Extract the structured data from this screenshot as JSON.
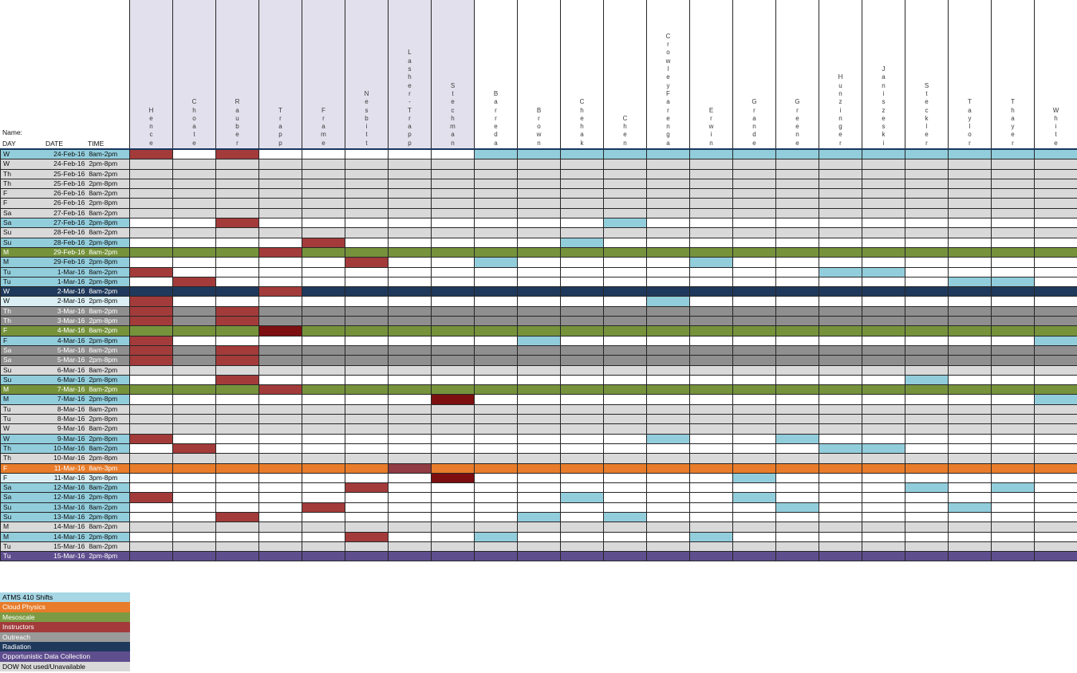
{
  "header": {
    "name_label": "Name:",
    "day": "DAY",
    "date": "DATE",
    "time": "TIME"
  },
  "columns": [
    {
      "name": "Hence",
      "shaded": true
    },
    {
      "name": "Choate",
      "shaded": true
    },
    {
      "name": "Rauber",
      "shaded": true
    },
    {
      "name": "Trapp",
      "shaded": true
    },
    {
      "name": "Frame",
      "shaded": true
    },
    {
      "name": "Nesbitt",
      "shaded": true
    },
    {
      "name": "Lasher-Trapp",
      "shaded": true
    },
    {
      "name": "Stechman",
      "shaded": true
    },
    {
      "name": "Barreda",
      "shaded": false
    },
    {
      "name": "Brown",
      "shaded": false
    },
    {
      "name": "Chehak",
      "shaded": false
    },
    {
      "name": "Chen",
      "shaded": false
    },
    {
      "name": "CrowleyFarenga",
      "shaded": false
    },
    {
      "name": "Erwin",
      "shaded": false
    },
    {
      "name": "Grande",
      "shaded": false
    },
    {
      "name": "Greene",
      "shaded": false
    },
    {
      "name": "Hunzinger",
      "shaded": false
    },
    {
      "name": "Janiszeski",
      "shaded": false
    },
    {
      "name": "Steckler",
      "shaded": false
    },
    {
      "name": "Taylor",
      "shaded": false
    },
    {
      "name": "Thayer",
      "shaded": false
    },
    {
      "name": "White",
      "shaded": false
    }
  ],
  "colors": {
    "lavender": "#E3E0ED",
    "blue": "#92CDDC",
    "pale": "#DAEEF3",
    "lgray": "#D9D9D9",
    "dgray": "#8F8F8F",
    "green": "#76933C",
    "navy": "#1F395C",
    "orange": "#E87C2A",
    "purple": "#5F4E8E",
    "red": "#A33B3B",
    "maroon": "#7D0F10",
    "ltmaroon": "#913B43",
    "white": "#FFFFFF"
  },
  "rows": [
    {
      "day": "W",
      "date": "24-Feb-16",
      "time": "8am-2pm",
      "label": "blue",
      "fill": "white",
      "marks": [
        {
          "col": "Hence",
          "color": "red"
        },
        {
          "col": "Rauber",
          "color": "red"
        },
        {
          "col": "Barreda",
          "color": "blue"
        },
        {
          "col": "Brown",
          "color": "blue"
        },
        {
          "col": "Chehak",
          "color": "blue"
        },
        {
          "col": "Chen",
          "color": "blue"
        },
        {
          "col": "CrowleyFarenga",
          "color": "blue"
        },
        {
          "col": "Erwin",
          "color": "blue"
        },
        {
          "col": "Grande",
          "color": "blue"
        },
        {
          "col": "Greene",
          "color": "blue"
        },
        {
          "col": "Hunzinger",
          "color": "blue"
        },
        {
          "col": "Janiszeski",
          "color": "blue"
        },
        {
          "col": "Steckler",
          "color": "blue"
        },
        {
          "col": "Taylor",
          "color": "blue"
        },
        {
          "col": "Thayer",
          "color": "blue"
        },
        {
          "col": "White",
          "color": "blue"
        }
      ]
    },
    {
      "day": "W",
      "date": "24-Feb-16",
      "time": "2pm-8pm",
      "label": "lgray",
      "fill": "lgray",
      "marks": []
    },
    {
      "day": "Th",
      "date": "25-Feb-16",
      "time": "8am-2pm",
      "label": "lgray",
      "fill": "lgray",
      "marks": []
    },
    {
      "day": "Th",
      "date": "25-Feb-16",
      "time": "2pm-8pm",
      "label": "lgray",
      "fill": "lgray",
      "marks": []
    },
    {
      "day": "F",
      "date": "26-Feb-16",
      "time": "8am-2pm",
      "label": "lgray",
      "fill": "lgray",
      "marks": []
    },
    {
      "day": "F",
      "date": "26-Feb-16",
      "time": "2pm-8pm",
      "label": "lgray",
      "fill": "lgray",
      "marks": []
    },
    {
      "day": "Sa",
      "date": "27-Feb-16",
      "time": "8am-2pm",
      "label": "lgray",
      "fill": "lgray",
      "marks": []
    },
    {
      "day": "Sa",
      "date": "27-Feb-16",
      "time": "2pm-8pm",
      "label": "blue",
      "fill": "white",
      "marks": [
        {
          "col": "Rauber",
          "color": "red"
        },
        {
          "col": "Chen",
          "color": "blue"
        }
      ]
    },
    {
      "day": "Su",
      "date": "28-Feb-16",
      "time": "8am-2pm",
      "label": "lgray",
      "fill": "lgray",
      "marks": []
    },
    {
      "day": "Su",
      "date": "28-Feb-16",
      "time": "2pm-8pm",
      "label": "blue",
      "fill": "white",
      "marks": [
        {
          "col": "Frame",
          "color": "red"
        },
        {
          "col": "Chehak",
          "color": "blue"
        }
      ]
    },
    {
      "day": "M",
      "date": "29-Feb-16",
      "time": "8am-2pm",
      "label": "green",
      "fill": "green",
      "marks": [
        {
          "col": "Trapp",
          "color": "red"
        }
      ]
    },
    {
      "day": "M",
      "date": "29-Feb-16",
      "time": "2pm-8pm",
      "label": "blue",
      "fill": "white",
      "marks": [
        {
          "col": "Nesbitt",
          "color": "red"
        },
        {
          "col": "Barreda",
          "color": "blue"
        },
        {
          "col": "Erwin",
          "color": "blue"
        }
      ]
    },
    {
      "day": "Tu",
      "date": "1-Mar-16",
      "time": "8am-2pm",
      "label": "blue",
      "fill": "white",
      "marks": [
        {
          "col": "Hence",
          "color": "red"
        },
        {
          "col": "Hunzinger",
          "color": "blue"
        },
        {
          "col": "Janiszeski",
          "color": "blue"
        }
      ]
    },
    {
      "day": "Tu",
      "date": "1-Mar-16",
      "time": "2pm-8pm",
      "label": "blue",
      "fill": "white",
      "marks": [
        {
          "col": "Choate",
          "color": "red"
        },
        {
          "col": "Taylor",
          "color": "blue"
        },
        {
          "col": "Thayer",
          "color": "blue"
        }
      ]
    },
    {
      "day": "W",
      "date": "2-Mar-16",
      "time": "8am-2pm",
      "label": "navy",
      "fill": "navy",
      "marks": [
        {
          "col": "Trapp",
          "color": "red"
        }
      ]
    },
    {
      "day": "W",
      "date": "2-Mar-16",
      "time": "2pm-8pm",
      "label": "pale",
      "fill": "white",
      "marks": [
        {
          "col": "Hence",
          "color": "red"
        },
        {
          "col": "CrowleyFarenga",
          "color": "blue"
        }
      ]
    },
    {
      "day": "Th",
      "date": "3-Mar-16",
      "time": "8am-2pm",
      "label": "dgray",
      "fill": "dgray",
      "marks": [
        {
          "col": "Hence",
          "color": "red"
        },
        {
          "col": "Rauber",
          "color": "red"
        }
      ]
    },
    {
      "day": "Th",
      "date": "3-Mar-16",
      "time": "2pm-8pm",
      "label": "dgray",
      "fill": "dgray",
      "marks": [
        {
          "col": "Hence",
          "color": "red"
        },
        {
          "col": "Rauber",
          "color": "red"
        }
      ]
    },
    {
      "day": "F",
      "date": "4-Mar-16",
      "time": "8am-2pm",
      "label": "green",
      "fill": "green",
      "marks": [
        {
          "col": "Trapp",
          "color": "maroon"
        }
      ]
    },
    {
      "day": "F",
      "date": "4-Mar-16",
      "time": "2pm-8pm",
      "label": "blue",
      "fill": "white",
      "marks": [
        {
          "col": "Hence",
          "color": "red"
        },
        {
          "col": "Brown",
          "color": "blue"
        },
        {
          "col": "White",
          "color": "blue"
        }
      ]
    },
    {
      "day": "Sa",
      "date": "5-Mar-16",
      "time": "8am-2pm",
      "label": "dgray",
      "fill": "dgray",
      "marks": [
        {
          "col": "Hence",
          "color": "red"
        },
        {
          "col": "Rauber",
          "color": "red"
        }
      ]
    },
    {
      "day": "Sa",
      "date": "5-Mar-16",
      "time": "2pm-8pm",
      "label": "dgray",
      "fill": "dgray",
      "marks": [
        {
          "col": "Hence",
          "color": "red"
        },
        {
          "col": "Rauber",
          "color": "red"
        }
      ]
    },
    {
      "day": "Su",
      "date": "6-Mar-16",
      "time": "8am-2pm",
      "label": "lgray",
      "fill": "lgray",
      "marks": []
    },
    {
      "day": "Su",
      "date": "6-Mar-16",
      "time": "2pm-8pm",
      "label": "blue",
      "fill": "white",
      "marks": [
        {
          "col": "Rauber",
          "color": "red"
        },
        {
          "col": "Steckler",
          "color": "blue"
        }
      ]
    },
    {
      "day": "M",
      "date": "7-Mar-16",
      "time": "8am-2pm",
      "label": "green",
      "fill": "green",
      "marks": [
        {
          "col": "Trapp",
          "color": "red"
        }
      ]
    },
    {
      "day": "M",
      "date": "7-Mar-16",
      "time": "2pm-8pm",
      "label": "blue",
      "fill": "white",
      "marks": [
        {
          "col": "Stechman",
          "color": "maroon"
        },
        {
          "col": "White",
          "color": "blue"
        }
      ]
    },
    {
      "day": "Tu",
      "date": "8-Mar-16",
      "time": "8am-2pm",
      "label": "lgray",
      "fill": "lgray",
      "marks": []
    },
    {
      "day": "Tu",
      "date": "8-Mar-16",
      "time": "2pm-8pm",
      "label": "lgray",
      "fill": "lgray",
      "marks": []
    },
    {
      "day": "W",
      "date": "9-Mar-16",
      "time": "8am-2pm",
      "label": "lgray",
      "fill": "lgray",
      "marks": []
    },
    {
      "day": "W",
      "date": "9-Mar-16",
      "time": "2pm-8pm",
      "label": "blue",
      "fill": "white",
      "marks": [
        {
          "col": "Hence",
          "color": "red"
        },
        {
          "col": "CrowleyFarenga",
          "color": "blue"
        },
        {
          "col": "Greene",
          "color": "blue"
        }
      ]
    },
    {
      "day": "Th",
      "date": "10-Mar-16",
      "time": "8am-2pm",
      "label": "blue",
      "fill": "white",
      "marks": [
        {
          "col": "Choate",
          "color": "red"
        },
        {
          "col": "Hunzinger",
          "color": "blue"
        },
        {
          "col": "Janiszeski",
          "color": "blue"
        }
      ]
    },
    {
      "day": "Th",
      "date": "10-Mar-16",
      "time": "2pm-8pm",
      "label": "lgray",
      "fill": "lgray",
      "marks": []
    },
    {
      "day": "F",
      "date": "11-Mar-16",
      "time": "8am-3pm",
      "label": "orange",
      "fill": "orange",
      "marks": [
        {
          "col": "Lasher-Trapp",
          "color": "ltmaroon"
        }
      ]
    },
    {
      "day": "F",
      "date": "11-Mar-16",
      "time": "3pm-8pm",
      "label": "pale",
      "fill": "white",
      "marks": [
        {
          "col": "Stechman",
          "color": "maroon"
        },
        {
          "col": "Grande",
          "color": "blue"
        }
      ]
    },
    {
      "day": "Sa",
      "date": "12-Mar-16",
      "time": "8am-2pm",
      "label": "blue",
      "fill": "white",
      "marks": [
        {
          "col": "Nesbitt",
          "color": "red"
        },
        {
          "col": "Steckler",
          "color": "blue"
        },
        {
          "col": "Thayer",
          "color": "blue"
        }
      ]
    },
    {
      "day": "Sa",
      "date": "12-Mar-16",
      "time": "2pm-8pm",
      "label": "blue",
      "fill": "white",
      "marks": [
        {
          "col": "Hence",
          "color": "red"
        },
        {
          "col": "Chehak",
          "color": "blue"
        },
        {
          "col": "Grande",
          "color": "blue"
        }
      ]
    },
    {
      "day": "Su",
      "date": "13-Mar-16",
      "time": "8am-2pm",
      "label": "blue",
      "fill": "white",
      "marks": [
        {
          "col": "Frame",
          "color": "red"
        },
        {
          "col": "Greene",
          "color": "blue"
        },
        {
          "col": "Taylor",
          "color": "blue"
        }
      ]
    },
    {
      "day": "Su",
      "date": "13-Mar-16",
      "time": "2pm-8pm",
      "label": "blue",
      "fill": "white",
      "marks": [
        {
          "col": "Rauber",
          "color": "red"
        },
        {
          "col": "Brown",
          "color": "blue"
        },
        {
          "col": "Chen",
          "color": "blue"
        }
      ]
    },
    {
      "day": "M",
      "date": "14-Mar-16",
      "time": "8am-2pm",
      "label": "lgray",
      "fill": "lgray",
      "marks": []
    },
    {
      "day": "M",
      "date": "14-Mar-16",
      "time": "2pm-8pm",
      "label": "blue",
      "fill": "white",
      "marks": [
        {
          "col": "Nesbitt",
          "color": "red"
        },
        {
          "col": "Barreda",
          "color": "blue"
        },
        {
          "col": "Erwin",
          "color": "blue"
        }
      ]
    },
    {
      "day": "Tu",
      "date": "15-Mar-16",
      "time": "8am-2pm",
      "label": "lgray",
      "fill": "lgray",
      "marks": []
    },
    {
      "day": "Tu",
      "date": "15-Mar-16",
      "time": "2pm-8pm",
      "label": "purple",
      "fill": "purple",
      "marks": []
    }
  ],
  "legend": [
    {
      "label": "ATMS 410 Shifts",
      "bg": "#A7D6E4",
      "fg": "#000000"
    },
    {
      "label": "Cloud Physics",
      "bg": "#E87C2A",
      "fg": "#FFFFFF"
    },
    {
      "label": "Mesoscale",
      "bg": "#7C9A43",
      "fg": "#FFFFFF"
    },
    {
      "label": "Instructors",
      "bg": "#A33B3B",
      "fg": "#FFFFFF"
    },
    {
      "label": "Outreach",
      "bg": "#9A9A9A",
      "fg": "#FFFFFF"
    },
    {
      "label": "Radiation",
      "bg": "#1F395C",
      "fg": "#FFFFFF"
    },
    {
      "label": "Opportunistic Data Collection",
      "bg": "#5F4E8E",
      "fg": "#FFFFFF"
    },
    {
      "label": "DOW Not used/Unavailable",
      "bg": "#D9D9D9",
      "fg": "#000000"
    }
  ]
}
